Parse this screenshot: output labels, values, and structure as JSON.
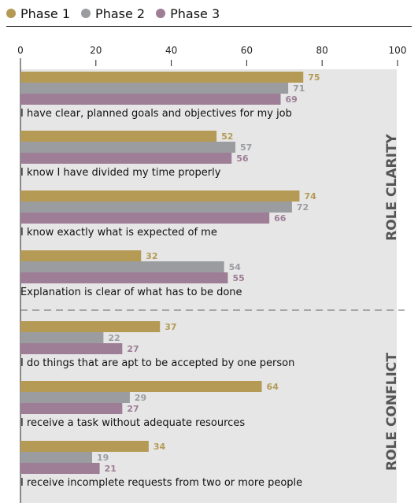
{
  "chart_data": {
    "type": "bar",
    "orientation": "horizontal",
    "xlim": [
      0,
      100
    ],
    "xticks": [
      "0",
      "20",
      "40",
      "60",
      "80",
      "100"
    ],
    "grid": false,
    "legend_position": "top-left",
    "series": [
      {
        "name": "Phase 1",
        "color": "#b49a55",
        "values": [
          75,
          52,
          74,
          32,
          37,
          64,
          34
        ]
      },
      {
        "name": "Phase 2",
        "color": "#9a9ca0",
        "values": [
          71,
          57,
          72,
          54,
          22,
          29,
          19
        ]
      },
      {
        "name": "Phase 3",
        "color": "#9e7e97",
        "values": [
          69,
          56,
          66,
          55,
          27,
          27,
          21
        ]
      }
    ],
    "categories": [
      "I have clear, planned goals and objectives for my job",
      "I know I have divided my time properly",
      "I know exactly what is expected of me",
      "Explanation is clear of what has to be done",
      "I do things that are apt to be accepted by one person",
      "I receive a task without adequate resources",
      "I receive incomplete requests from two or more people"
    ],
    "groups": [
      {
        "label": "ROLE  CLARITY",
        "categories": [
          0,
          1,
          2,
          3
        ]
      },
      {
        "label": "ROLE  CONFLICT",
        "categories": [
          4,
          5,
          6
        ]
      }
    ]
  }
}
